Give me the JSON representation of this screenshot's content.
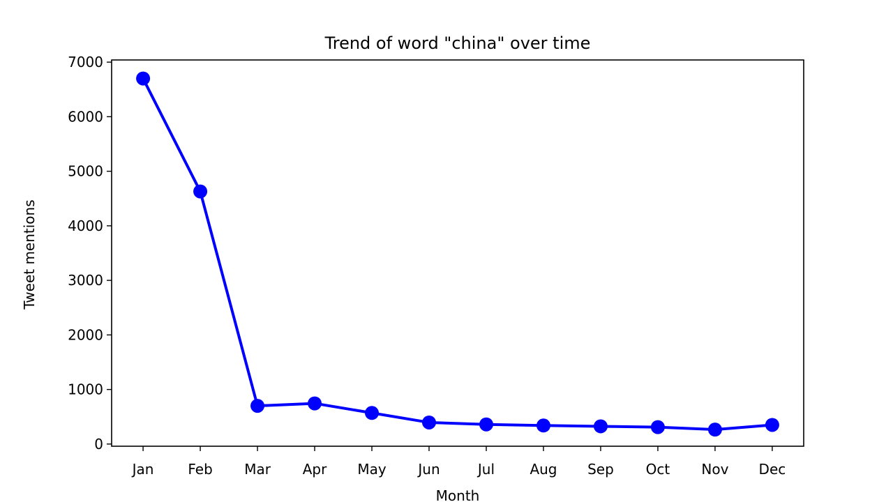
{
  "chart_data": {
    "type": "line",
    "title": "Trend of word \"china\" over time",
    "xlabel": "Month",
    "ylabel": "Tweet mentions",
    "categories": [
      "Jan",
      "Feb",
      "Mar",
      "Apr",
      "May",
      "Jun",
      "Jul",
      "Aug",
      "Sep",
      "Oct",
      "Nov",
      "Dec"
    ],
    "series": [
      {
        "values": [
          6700,
          4630,
          700,
          745,
          570,
          395,
          360,
          340,
          325,
          310,
          265,
          350
        ],
        "color": "#0000ff",
        "marker": "circle"
      }
    ],
    "yticks": [
      "0",
      "1000",
      "2000",
      "3000",
      "4000",
      "5000",
      "6000",
      "7000"
    ],
    "ylim": [
      -40,
      7040
    ],
    "grid": false,
    "legend": "none"
  }
}
